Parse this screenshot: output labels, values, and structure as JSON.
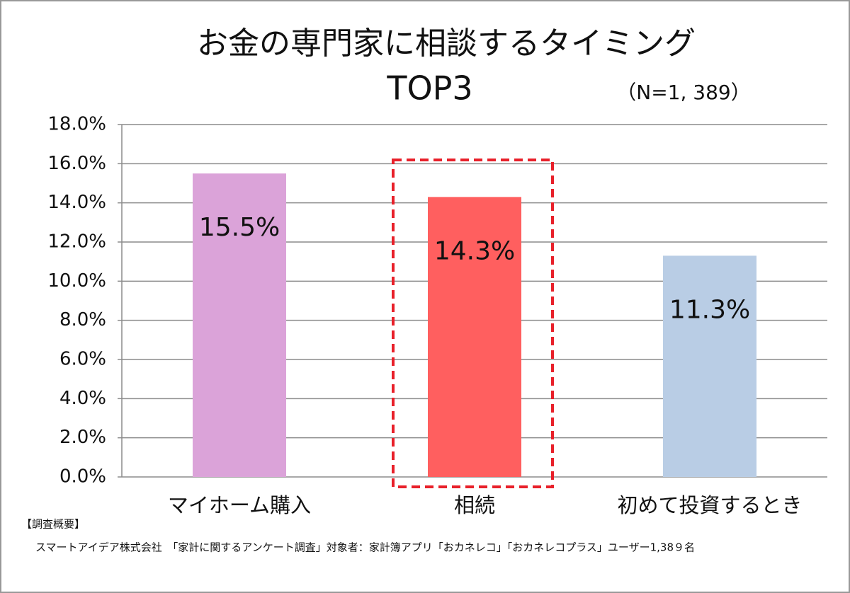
{
  "chart_data": {
    "type": "bar",
    "title": [
      "お金の専門家に相談するタイミング",
      "TOP3"
    ],
    "annotation": "（N=1, 389）",
    "categories": [
      "マイホーム購入",
      "相続",
      "初めて投資するとき"
    ],
    "series": [
      {
        "values": [
          15.5,
          14.3,
          11.3
        ],
        "value_labels": [
          "15.5%",
          "14.3%",
          "11.3%"
        ],
        "colors": [
          "#dba3d9",
          "#ff5f5f",
          "#b9cde5"
        ]
      }
    ],
    "ylim": [
      0,
      18
    ],
    "yticks": [
      {
        "value": 0,
        "label": "0.0%"
      },
      {
        "value": 2,
        "label": "2.0%"
      },
      {
        "value": 4,
        "label": "4.0%"
      },
      {
        "value": 6,
        "label": "6.0%"
      },
      {
        "value": 8,
        "label": "8.0%"
      },
      {
        "value": 10,
        "label": "10.0%"
      },
      {
        "value": 12,
        "label": "12.0%"
      },
      {
        "value": 14,
        "label": "14.0%"
      },
      {
        "value": 16,
        "label": "16.0%"
      },
      {
        "value": 18,
        "label": "18.0%"
      }
    ],
    "grid": true,
    "notes": [
      "【調査概要】",
      "スマートアイデア株式会社　「家計に関するアンケート調査」対象者：家計簿アプリ「おカネレコ」「おカネレコプラス」ユーザー1,38９名"
    ]
  }
}
